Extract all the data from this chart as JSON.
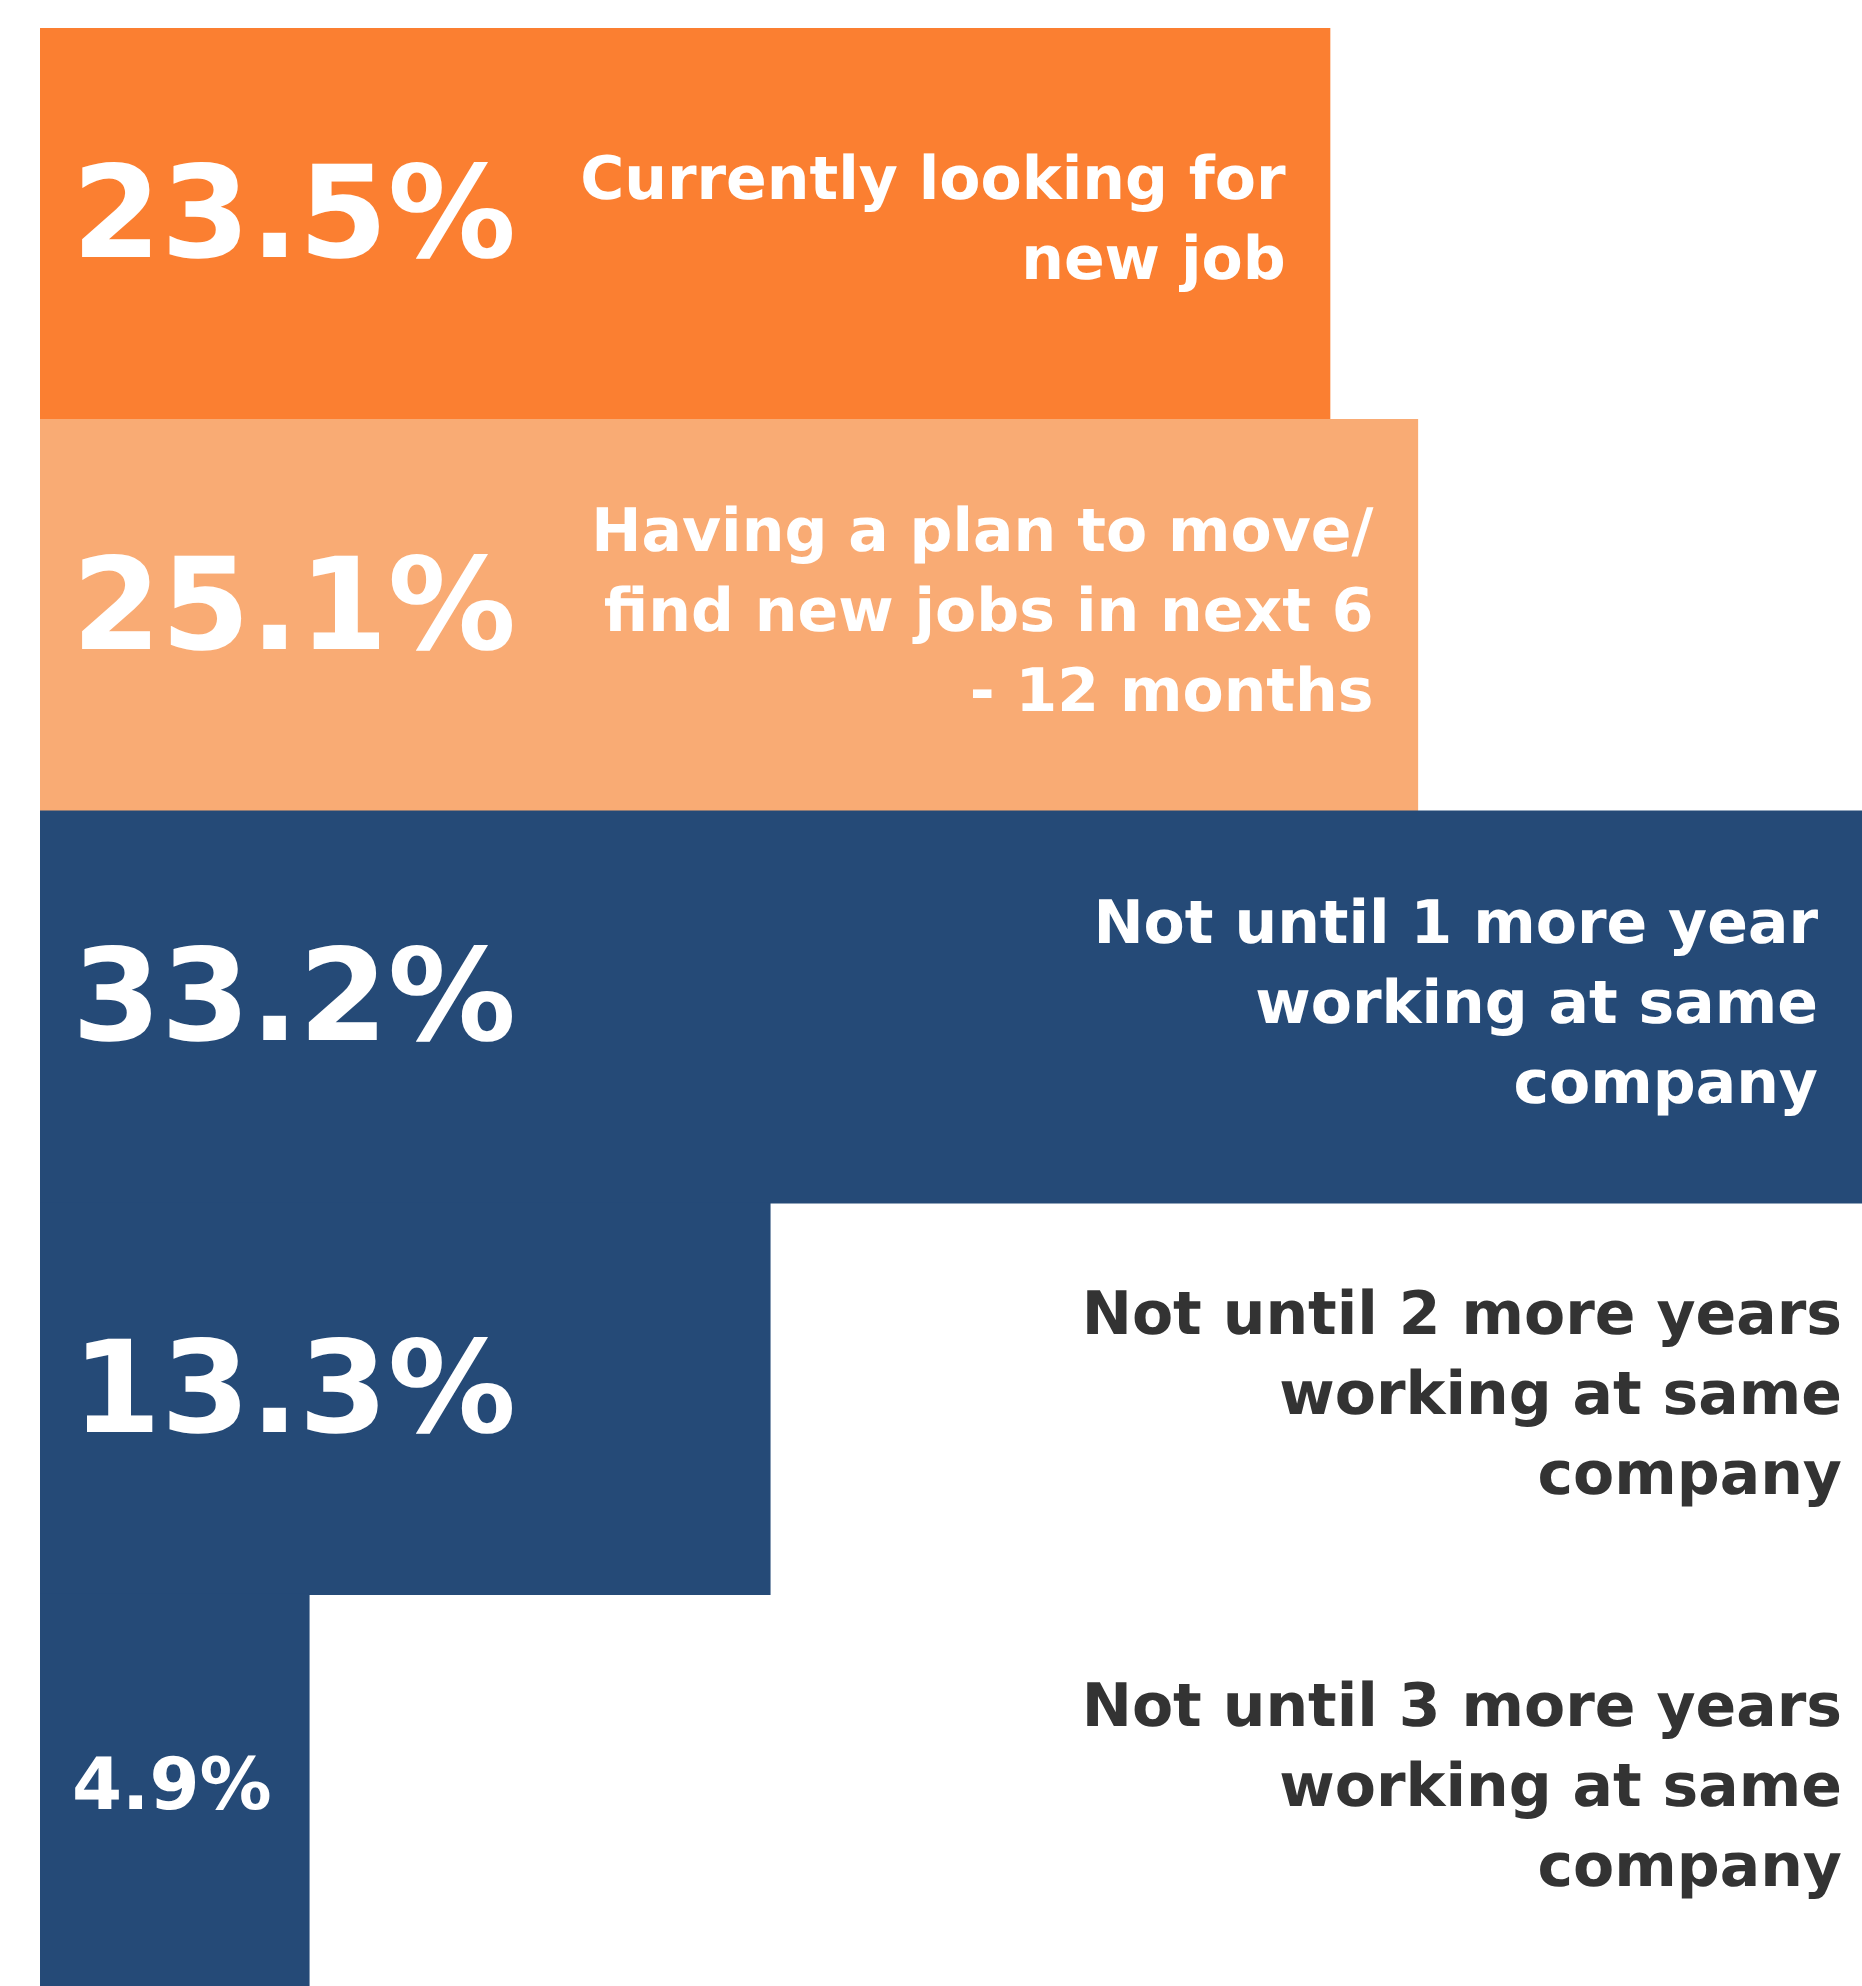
{
  "chart_data": {
    "type": "bar",
    "orientation": "horizontal",
    "relative": false,
    "categories": [
      "Currently looking for new job",
      "Having a plan to move/ find new jobs in next 6 - 12 months",
      "Not until 1 more year working at same company",
      "Not until 2 more years working at same company",
      "Not until 3 more years working at same company"
    ],
    "values": [
      23.5,
      25.1,
      33.2,
      13.3,
      4.9
    ],
    "colors": [
      "#fb7f31",
      "#f9ab74",
      "#254a77",
      "#254a77",
      "#254a77"
    ],
    "value_labels": [
      "23.5%",
      "25.1%",
      "33.2%",
      "13.3%",
      "4.9%"
    ],
    "xlim": [
      0,
      33.2
    ],
    "tick_labels": false,
    "grid": false,
    "legend": false
  }
}
